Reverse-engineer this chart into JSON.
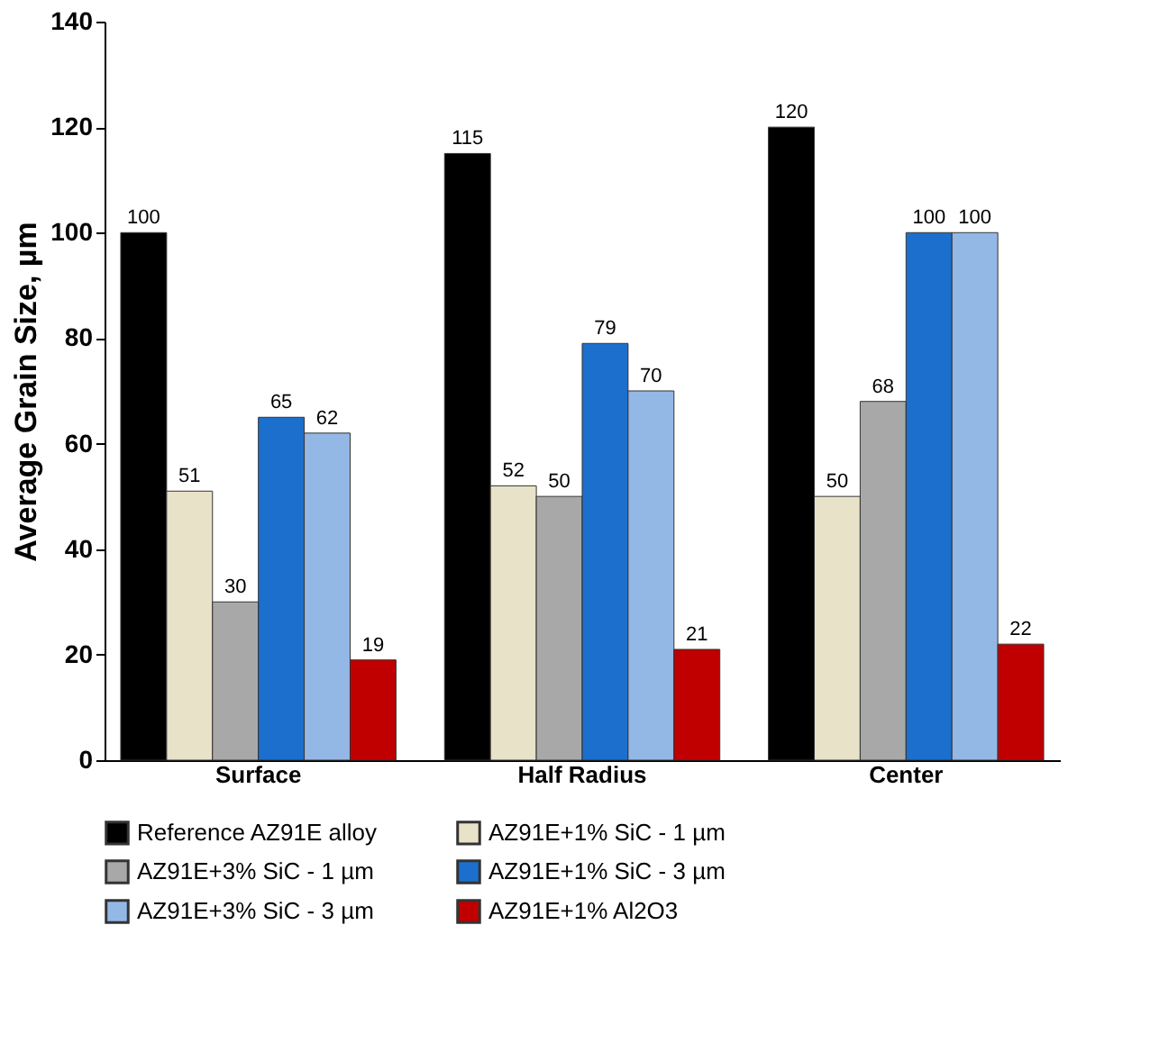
{
  "chart_data": {
    "type": "bar",
    "ylabel": "Average Grain Size, µm",
    "categories": [
      "Surface",
      "Half Radius",
      "Center"
    ],
    "series": [
      {
        "name": "Reference AZ91E alloy",
        "color": "#000000",
        "values": [
          100,
          115,
          120
        ]
      },
      {
        "name": "AZ91E+1% SiC - 1 µm",
        "color": "#e8e2c8",
        "values": [
          51,
          52,
          50
        ]
      },
      {
        "name": "AZ91E+3% SiC - 1 µm",
        "color": "#a8a8a8",
        "values": [
          30,
          50,
          68
        ]
      },
      {
        "name": "AZ91E+1% SiC - 3 µm",
        "color": "#1c6fcc",
        "values": [
          65,
          79,
          100
        ]
      },
      {
        "name": "AZ91E+3% SiC - 3 µm",
        "color": "#94b8e6",
        "values": [
          62,
          70,
          100
        ]
      },
      {
        "name": "AZ91E+1% Al2O3",
        "color": "#c00000",
        "values": [
          19,
          21,
          22
        ]
      }
    ],
    "ylim": [
      0,
      140
    ],
    "yticks": [
      0,
      20,
      40,
      60,
      80,
      100,
      120,
      140
    ],
    "data_labels": true,
    "grid": false,
    "legend": "bottom"
  }
}
